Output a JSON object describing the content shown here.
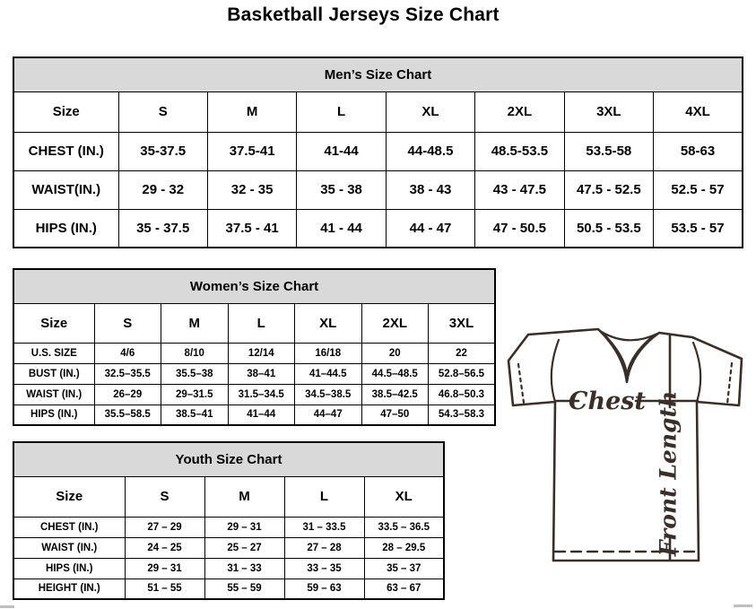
{
  "page": {
    "title": "Basketball Jerseys Size Chart"
  },
  "tables": {
    "men": {
      "title": "Men’s Size Chart",
      "columns": [
        "Size",
        "S",
        "M",
        "L",
        "XL",
        "2XL",
        "3XL",
        "4XL"
      ],
      "rows": [
        {
          "label": "CHEST (IN.)",
          "values": [
            "35-37.5",
            "37.5-41",
            "41-44",
            "44-48.5",
            "48.5-53.5",
            "53.5-58",
            "58-63"
          ]
        },
        {
          "label": "WAIST(IN.)",
          "values": [
            "29 - 32",
            "32 - 35",
            "35 - 38",
            "38 - 43",
            "43 - 47.5",
            "47.5 - 52.5",
            "52.5 - 57"
          ]
        },
        {
          "label": "HIPS (IN.)",
          "values": [
            "35 - 37.5",
            "37.5 - 41",
            "41 - 44",
            "44 - 47",
            "47 - 50.5",
            "50.5 - 53.5",
            "53.5 - 57"
          ]
        }
      ]
    },
    "women": {
      "title": "Women’s Size Chart",
      "columns": [
        "Size",
        "S",
        "M",
        "L",
        "XL",
        "2XL",
        "3XL"
      ],
      "rows": [
        {
          "label": "U.S. SIZE",
          "values": [
            "4/6",
            "8/10",
            "12/14",
            "16/18",
            "20",
            "22"
          ]
        },
        {
          "label": "BUST (IN.)",
          "values": [
            "32.5–35.5",
            "35.5–38",
            "38–41",
            "41–44.5",
            "44.5–48.5",
            "52.8–56.5"
          ]
        },
        {
          "label": "WAIST (IN.)",
          "values": [
            "26–29",
            "29–31.5",
            "31.5–34.5",
            "34.5–38.5",
            "38.5–42.5",
            "46.8–50.3"
          ]
        },
        {
          "label": "HIPS (IN.)",
          "values": [
            "35.5–58.5",
            "38.5–41",
            "41–44",
            "44–47",
            "47–50",
            "54.3–58.3"
          ]
        }
      ]
    },
    "youth": {
      "title": "Youth Size Chart",
      "columns": [
        "Size",
        "S",
        "M",
        "L",
        "XL"
      ],
      "rows": [
        {
          "label": "CHEST (IN.)",
          "values": [
            "27 – 29",
            "29 – 31",
            "31 – 33.5",
            "33.5 – 36.5"
          ]
        },
        {
          "label": "WAIST (IN.)",
          "values": [
            "24 – 25",
            "25 – 27",
            "27 – 28",
            "28 – 29.5"
          ]
        },
        {
          "label": "HIPS (IN.)",
          "values": [
            "29 – 31",
            "31 – 33",
            "33 – 35",
            "35 – 37"
          ]
        },
        {
          "label": "HEIGHT (IN.)",
          "values": [
            "51 – 55",
            "55 – 59",
            "59 – 63",
            "63 – 67"
          ]
        }
      ]
    }
  },
  "diagram": {
    "chest_label": "Chest",
    "front_length_label": "Front Length"
  },
  "colors": {
    "table_header_bg": "#d9d9d9",
    "table_border": "#000000",
    "diagram_line": "#3a2e28",
    "scrollbar": "#bfbfbf"
  }
}
